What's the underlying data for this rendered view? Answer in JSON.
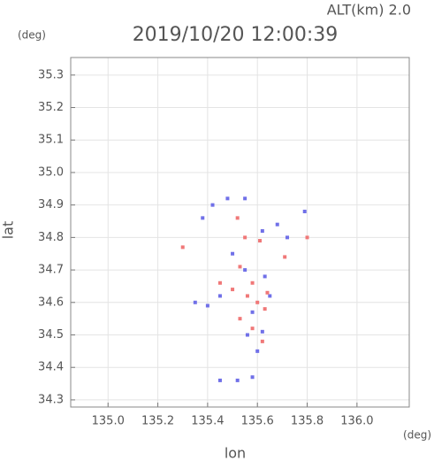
{
  "chart_data": {
    "type": "scatter",
    "title": "2019/10/20 12:00:39",
    "altitude_label": "ALT(km) 2.0",
    "y_unit": "(deg)",
    "x_unit": "(deg)",
    "x_label": "lon",
    "y_label": "lat",
    "xlim": [
      134.85,
      136.21
    ],
    "ylim": [
      34.278,
      35.354
    ],
    "xticks": [
      {
        "value": 135.0,
        "label": "135.0"
      },
      135.2,
      135.4,
      135.6,
      135.8,
      {
        "value": 136.0,
        "label": "136.0"
      }
    ],
    "yticks": [
      35.3,
      35.2,
      35.1,
      {
        "value": 35.0,
        "label": "35.0"
      },
      34.9,
      34.8,
      34.7,
      34.6,
      34.5,
      34.4,
      34.3
    ],
    "grid": true,
    "series": [
      {
        "color": "#7070e8",
        "x": [
          135.42,
          135.48,
          135.55,
          135.38,
          135.62,
          135.68,
          135.72,
          135.79,
          135.5,
          135.55,
          135.63,
          135.45,
          135.4,
          135.58,
          135.65,
          135.56,
          135.62,
          135.6,
          135.45,
          135.52,
          135.58,
          135.35
        ],
        "y": [
          34.9,
          34.92,
          34.92,
          34.86,
          34.82,
          34.84,
          34.8,
          34.88,
          34.75,
          34.7,
          34.68,
          34.62,
          34.59,
          34.57,
          34.62,
          34.5,
          34.51,
          34.45,
          34.36,
          34.36,
          34.37,
          34.6
        ]
      },
      {
        "color": "#f07878",
        "x": [
          135.3,
          135.52,
          135.55,
          135.61,
          135.71,
          135.8,
          135.53,
          135.58,
          135.5,
          135.56,
          135.6,
          135.63,
          135.53,
          135.58,
          135.62,
          135.45,
          135.64
        ],
        "y": [
          34.77,
          34.86,
          34.8,
          34.79,
          34.74,
          34.8,
          34.71,
          34.66,
          34.64,
          34.62,
          34.6,
          34.58,
          34.55,
          34.52,
          34.48,
          34.66,
          34.63
        ]
      }
    ]
  }
}
